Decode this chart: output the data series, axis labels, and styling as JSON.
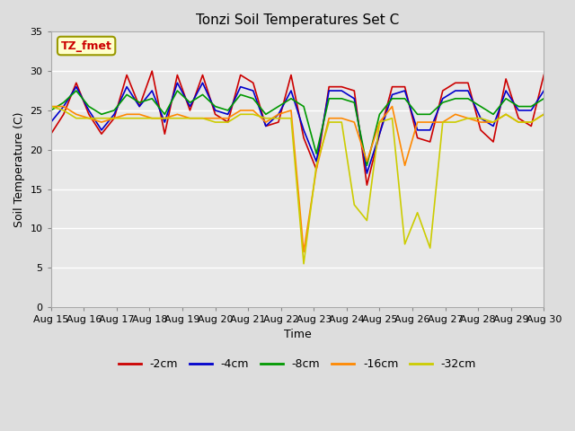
{
  "title": "Tonzi Soil Temperatures Set C",
  "xlabel": "Time",
  "ylabel": "Soil Temperature (C)",
  "ylim": [
    0,
    35
  ],
  "yticks": [
    0,
    5,
    10,
    15,
    20,
    25,
    30,
    35
  ],
  "x_labels": [
    "Aug 15",
    "Aug 16",
    "Aug 17",
    "Aug 18",
    "Aug 19",
    "Aug 20",
    "Aug 21",
    "Aug 22",
    "Aug 23",
    "Aug 24",
    "Aug 25",
    "Aug 26",
    "Aug 27",
    "Aug 28",
    "Aug 29",
    "Aug 30"
  ],
  "annotation_label": "TZ_fmet",
  "colors": {
    "-2cm": "#cc0000",
    "-4cm": "#0000cc",
    "-8cm": "#009900",
    "-16cm": "#ff8800",
    "-32cm": "#cccc00"
  },
  "legend_labels": [
    "-2cm",
    "-4cm",
    "-8cm",
    "-16cm",
    "-32cm"
  ],
  "legend_colors": [
    "#cc0000",
    "#0000cc",
    "#009900",
    "#ff8800",
    "#cccc00"
  ],
  "background_color": "#dddddd",
  "plot_bg_color": "#e8e8e8",
  "series": {
    "-2cm": [
      22.0,
      24.5,
      28.5,
      24.5,
      22.0,
      24.0,
      29.5,
      25.5,
      30.0,
      22.0,
      29.5,
      25.0,
      29.5,
      24.5,
      23.5,
      29.5,
      28.5,
      23.0,
      23.5,
      29.5,
      21.5,
      17.5,
      28.0,
      28.0,
      27.5,
      15.5,
      22.0,
      28.0,
      28.0,
      21.5,
      21.0,
      27.5,
      28.5,
      28.5,
      22.5,
      21.0,
      29.0,
      24.0,
      23.0,
      29.5
    ],
    "-4cm": [
      23.5,
      25.5,
      28.0,
      25.0,
      22.5,
      24.5,
      28.0,
      25.5,
      27.5,
      23.5,
      28.5,
      25.5,
      28.5,
      25.0,
      24.5,
      28.0,
      27.5,
      23.0,
      24.5,
      27.5,
      22.5,
      18.5,
      27.5,
      27.5,
      26.5,
      17.0,
      22.0,
      27.0,
      27.5,
      22.5,
      22.5,
      26.5,
      27.5,
      27.5,
      24.0,
      23.0,
      27.5,
      25.0,
      25.0,
      27.5
    ],
    "-8cm": [
      25.0,
      26.0,
      27.5,
      25.5,
      24.5,
      25.0,
      27.0,
      26.0,
      26.5,
      24.5,
      27.5,
      26.0,
      27.0,
      25.5,
      25.0,
      27.0,
      26.5,
      24.5,
      25.5,
      26.5,
      25.5,
      19.5,
      26.5,
      26.5,
      26.0,
      18.0,
      24.5,
      26.5,
      26.5,
      24.5,
      24.5,
      26.0,
      26.5,
      26.5,
      25.5,
      24.5,
      26.5,
      25.5,
      25.5,
      26.5
    ],
    "-16cm": [
      25.5,
      25.5,
      24.5,
      24.0,
      23.5,
      24.0,
      24.5,
      24.5,
      24.0,
      24.0,
      24.5,
      24.0,
      24.0,
      24.0,
      24.0,
      25.0,
      25.0,
      23.5,
      24.5,
      25.0,
      7.0,
      17.5,
      24.0,
      24.0,
      23.5,
      18.5,
      23.5,
      25.5,
      18.0,
      23.5,
      23.5,
      23.5,
      24.5,
      24.0,
      23.5,
      23.5,
      24.5,
      23.5,
      23.5,
      24.5
    ],
    "-32cm": [
      25.5,
      25.0,
      24.0,
      24.0,
      24.0,
      24.0,
      24.0,
      24.0,
      24.0,
      24.0,
      24.0,
      24.0,
      24.0,
      23.5,
      23.5,
      24.5,
      24.5,
      24.0,
      24.0,
      24.0,
      5.5,
      18.0,
      23.5,
      23.5,
      13.0,
      11.0,
      23.5,
      24.0,
      8.0,
      12.0,
      7.5,
      23.5,
      23.5,
      24.0,
      24.0,
      23.5,
      24.5,
      23.5,
      23.5,
      24.5
    ]
  }
}
